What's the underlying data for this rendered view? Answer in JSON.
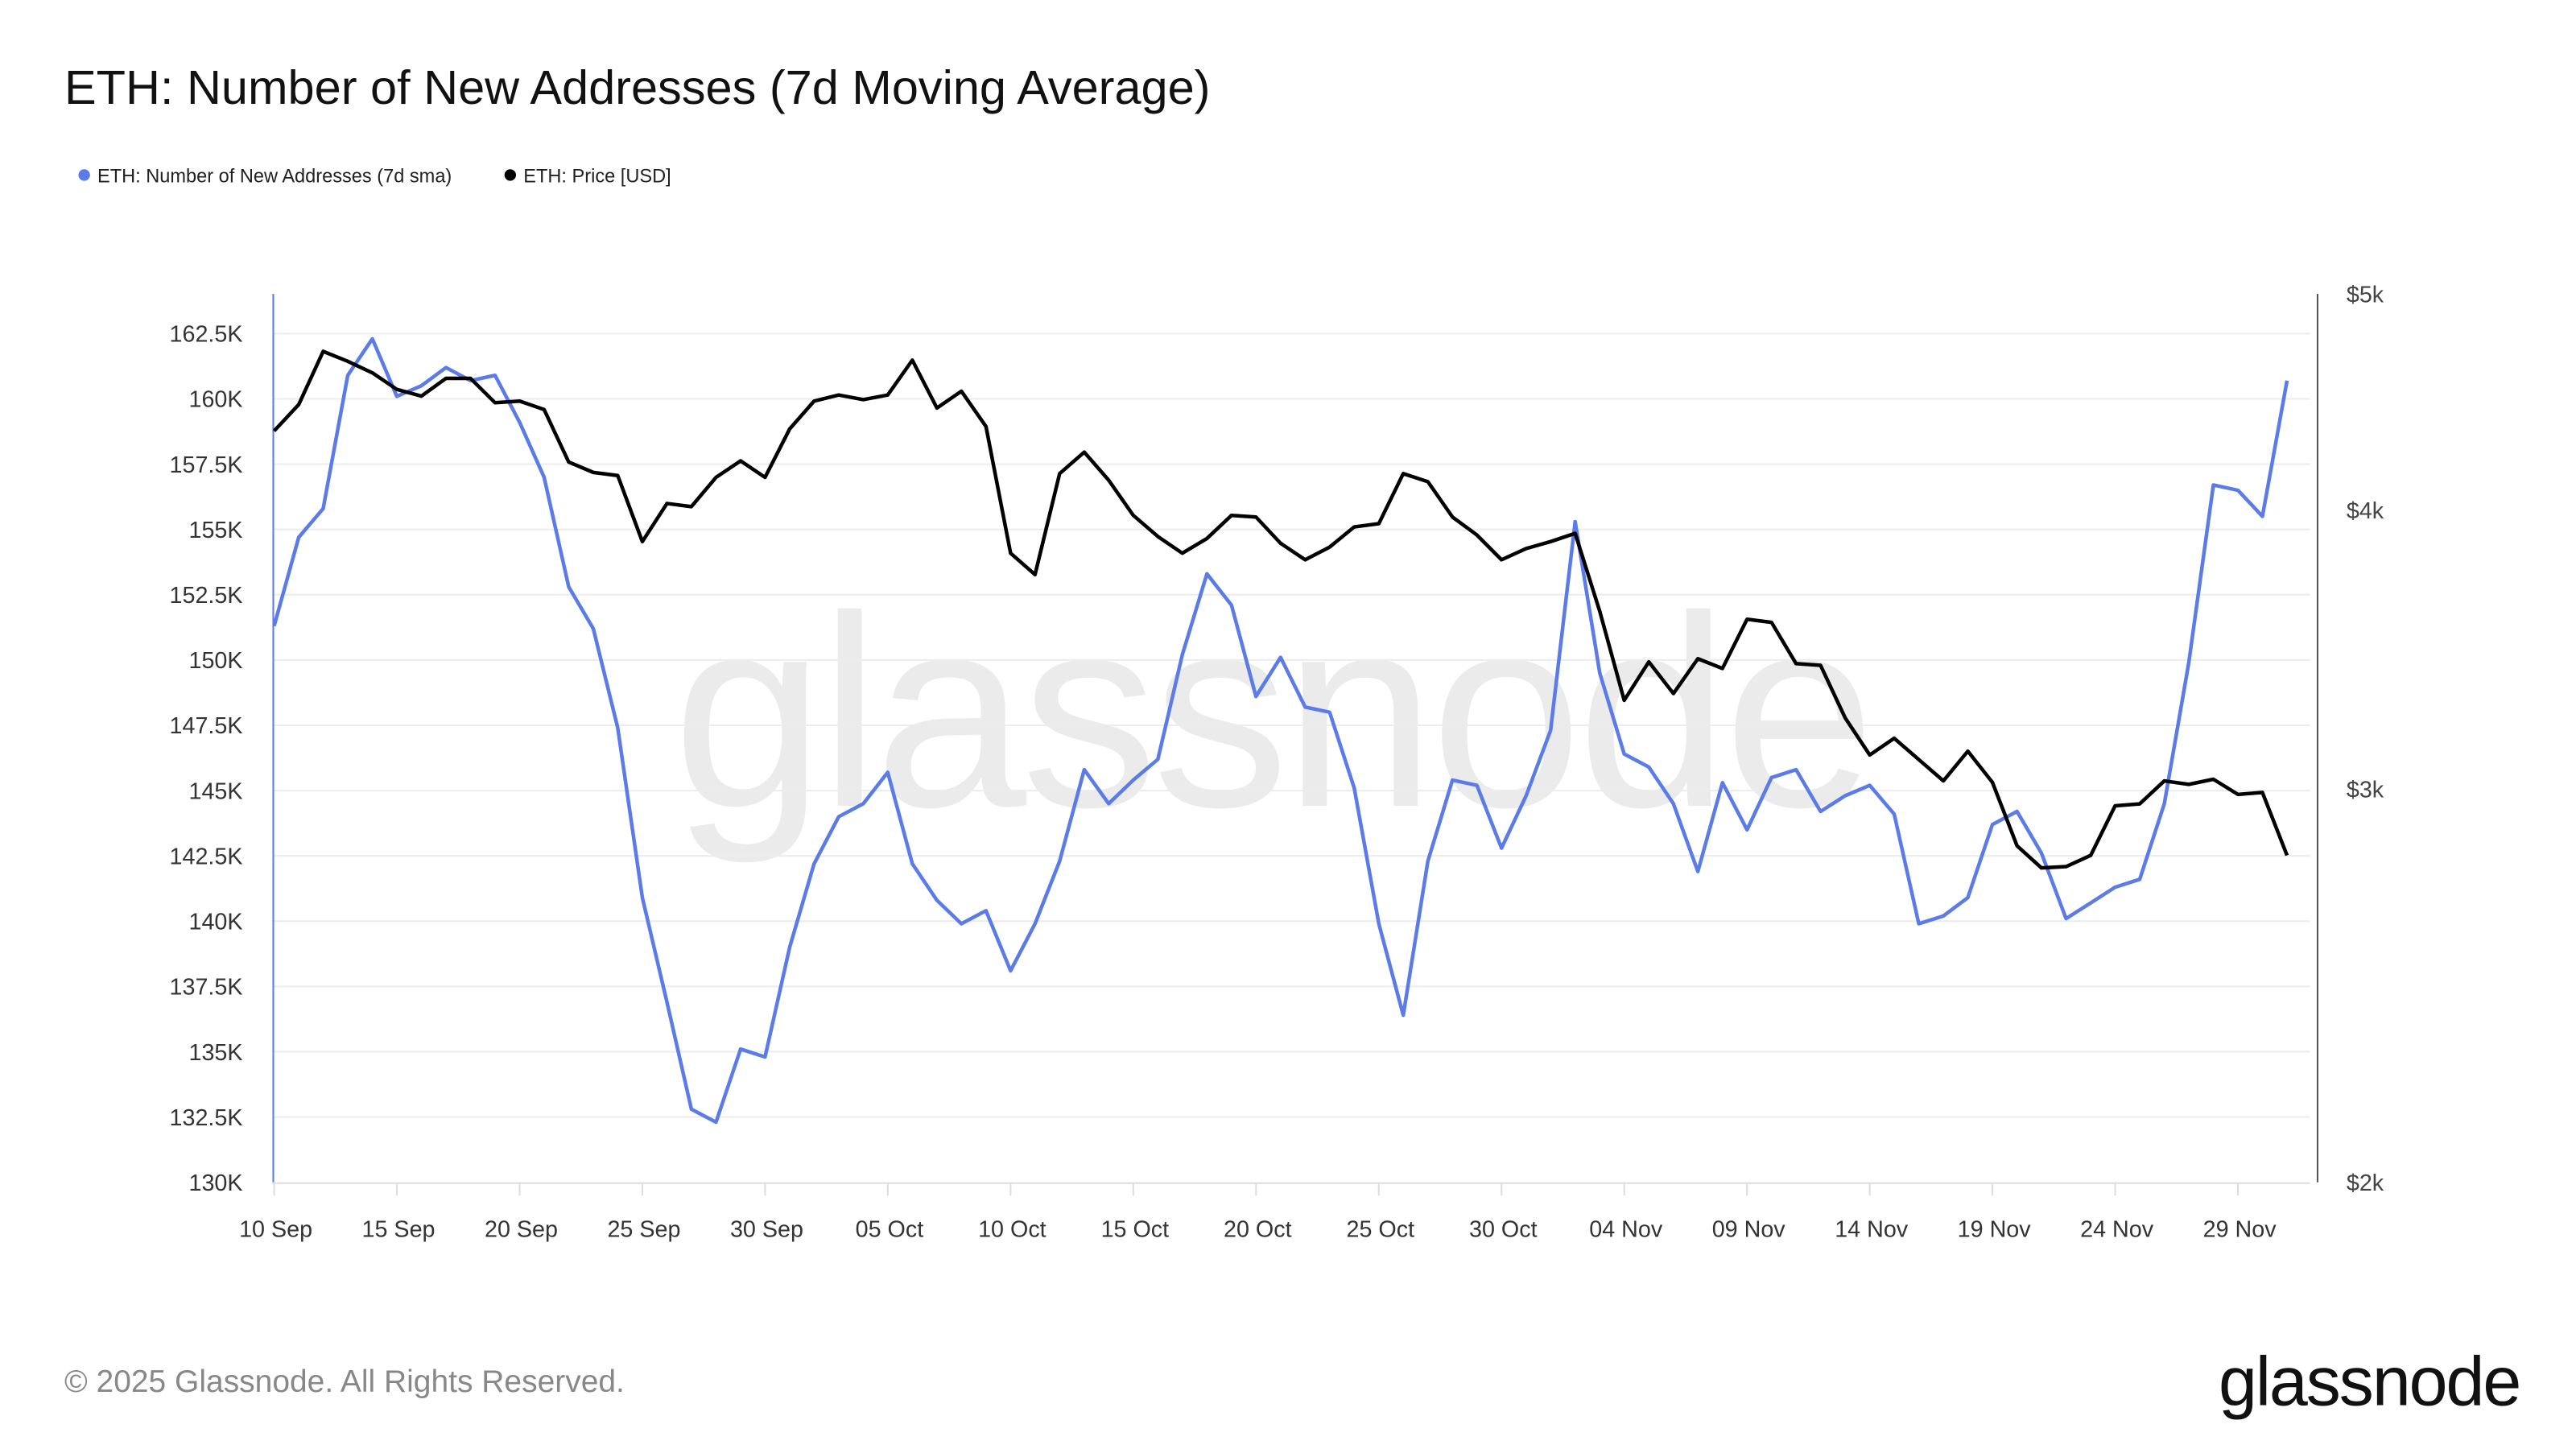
{
  "title": "ETH: Number of New Addresses (7d Moving Average)",
  "footer": {
    "copyright": "© 2025 Glassnode. All Rights Reserved.",
    "logo": "glassnode"
  },
  "watermark": "glassnode",
  "colors": {
    "addresses": "#5b7be8",
    "price": "#000000",
    "grid": "#ececec"
  },
  "chart_data": {
    "type": "line",
    "title": "ETH: Number of New Addresses (7d Moving Average)",
    "legend_position": "top-left",
    "grid": true,
    "x_start": "2025-09-10",
    "x_end": "2025-12-01",
    "x_ticks": [
      "10 Sep",
      "15 Sep",
      "20 Sep",
      "25 Sep",
      "30 Sep",
      "05 Oct",
      "10 Oct",
      "15 Oct",
      "20 Oct",
      "25 Oct",
      "30 Oct",
      "04 Nov",
      "09 Nov",
      "14 Nov",
      "19 Nov",
      "24 Nov",
      "29 Nov"
    ],
    "y_left": {
      "min": 130000,
      "max": 162500,
      "ticks": [
        "130K",
        "132.5K",
        "135K",
        "137.5K",
        "140K",
        "142.5K",
        "145K",
        "147.5K",
        "150K",
        "152.5K",
        "155K",
        "157.5K",
        "160K",
        "162.5K"
      ]
    },
    "y_right": {
      "scale": "log",
      "min": 2000,
      "max": 5000,
      "ticks": [
        {
          "v": 2000,
          "label": "$2k"
        },
        {
          "v": 3000,
          "label": "$3k"
        },
        {
          "v": 4000,
          "label": "$4k"
        },
        {
          "v": 5000,
          "label": "$5k"
        }
      ]
    },
    "series": [
      {
        "name": "ETH: Number of New Addresses (7d sma)",
        "axis": "left",
        "color": "#5b7be8",
        "values": [
          151300,
          154700,
          155800,
          160900,
          162300,
          160100,
          160500,
          161200,
          160700,
          160900,
          159100,
          157000,
          152800,
          151200,
          147400,
          140900,
          136900,
          132800,
          132300,
          135100,
          134800,
          139000,
          142200,
          144000,
          144500,
          145700,
          142200,
          140800,
          139900,
          140400,
          138100,
          139900,
          142300,
          145800,
          144500,
          145400,
          146200,
          150200,
          153300,
          152100,
          148600,
          150100,
          148200,
          148000,
          145100,
          139900,
          136400,
          142300,
          145400,
          145200,
          142800,
          144800,
          147300,
          155300,
          149500,
          146400,
          145900,
          144500,
          141900,
          145300,
          143500,
          145500,
          145800,
          144200,
          144800,
          145200,
          144100,
          139900,
          140200,
          140900,
          143700,
          144200,
          142600,
          140100,
          140700,
          141300,
          141600,
          144500,
          149900,
          156700,
          156500,
          155500,
          160700
        ]
      },
      {
        "name": "ETH: Price [USD]",
        "axis": "right",
        "color": "#000000",
        "values": [
          4341,
          4461,
          4712,
          4664,
          4609,
          4531,
          4500,
          4583,
          4583,
          4469,
          4477,
          4438,
          4204,
          4159,
          4146,
          3873,
          4028,
          4015,
          4138,
          4209,
          4138,
          4350,
          4477,
          4505,
          4484,
          4505,
          4670,
          4445,
          4523,
          4361,
          3827,
          3743,
          4154,
          4247,
          4126,
          3979,
          3893,
          3827,
          3885,
          3979,
          3972,
          3866,
          3801,
          3851,
          3932,
          3945,
          4154,
          4120,
          3972,
          3899,
          3801,
          3845,
          3873,
          3906,
          3604,
          3288,
          3421,
          3311,
          3432,
          3398,
          3575,
          3563,
          3415,
          3409,
          3229,
          3108,
          3162,
          3093,
          3026,
          3120,
          3021,
          2830,
          2766,
          2770,
          2802,
          2949,
          2955,
          3026,
          3015,
          3031,
          2984,
          2990,
          2802
        ]
      }
    ]
  }
}
